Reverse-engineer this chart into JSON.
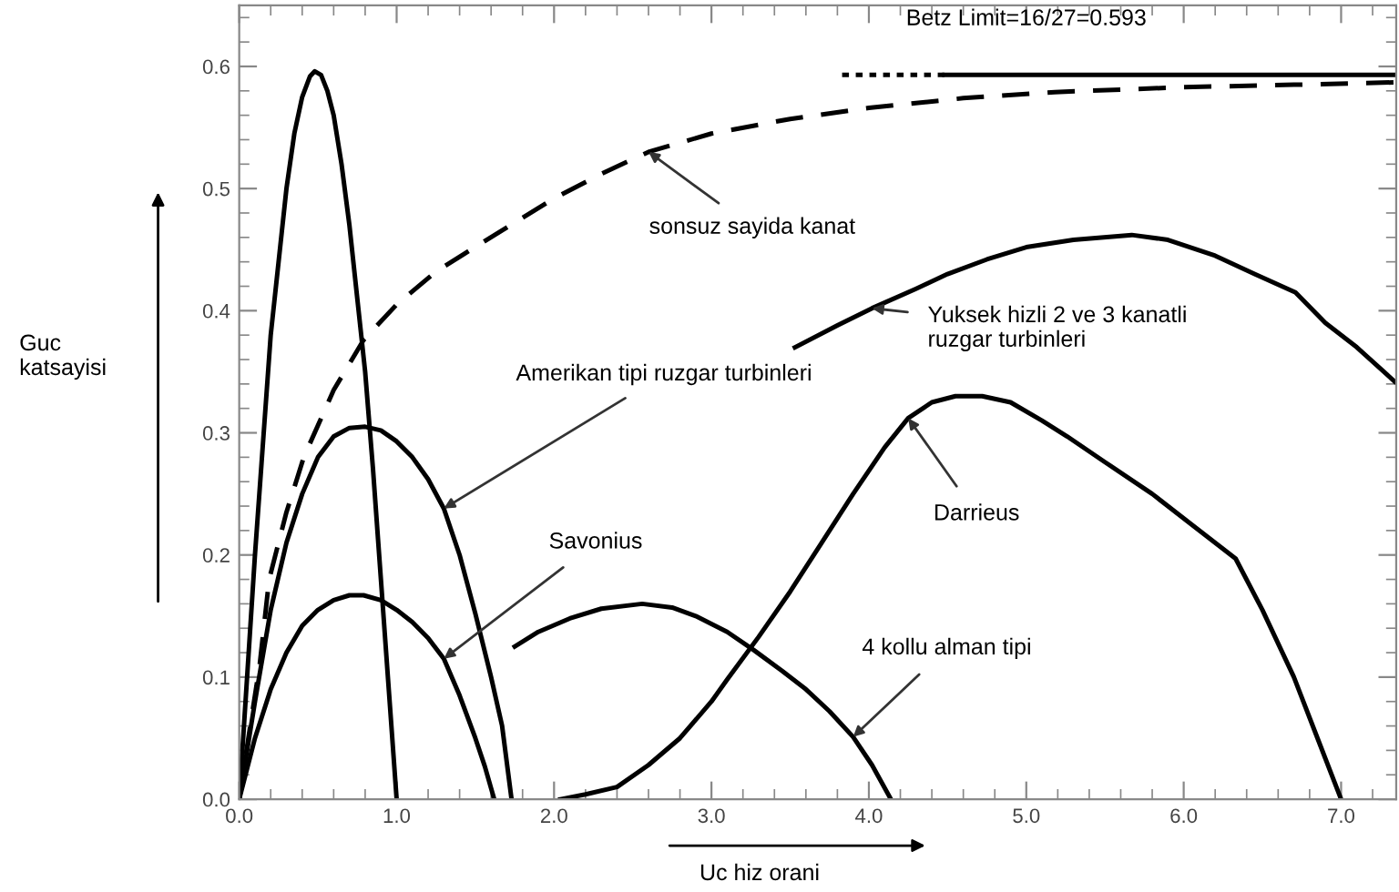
{
  "chart_data": {
    "type": "line",
    "xlabel": "Uc hiz orani",
    "ylabel": "Guc\nkatsayisi",
    "xlim": [
      0,
      7.35
    ],
    "ylim": [
      0,
      0.65
    ],
    "xticks": [
      {
        "value": 0,
        "label": "0.0"
      },
      {
        "value": 1,
        "label": "1.0"
      },
      {
        "value": 2,
        "label": "2.0"
      },
      {
        "value": 3,
        "label": "3.0"
      },
      {
        "value": 4,
        "label": "4.0"
      },
      {
        "value": 5,
        "label": "5.0"
      },
      {
        "value": 6,
        "label": "6.0"
      },
      {
        "value": 7,
        "label": "7.0"
      }
    ],
    "yticks": [
      {
        "value": 0,
        "label": "0.0"
      },
      0.1,
      0.2,
      0.3,
      0.4,
      0.5,
      0.6
    ],
    "grid": false,
    "legend": false,
    "series": [
      {
        "color": "#000000",
        "line_style": "solid",
        "x": [
          0,
          0.05,
          0.1,
          0.15,
          0.2,
          0.25,
          0.3,
          0.35,
          0.4,
          0.45,
          0.48,
          0.52,
          0.56,
          0.6,
          0.65,
          0.7,
          0.75,
          0.8,
          0.85,
          0.9,
          0.95,
          1.0
        ],
        "values": [
          0,
          0.1,
          0.2,
          0.29,
          0.38,
          0.44,
          0.5,
          0.545,
          0.575,
          0.592,
          0.596,
          0.593,
          0.58,
          0.56,
          0.52,
          0.47,
          0.41,
          0.35,
          0.27,
          0.18,
          0.09,
          0
        ]
      },
      {
        "color": "#000000",
        "line_style": "dashed",
        "x": [
          0,
          0.07,
          0.13,
          0.19,
          0.3,
          0.41,
          0.6,
          0.79,
          1.0,
          1.25,
          1.56,
          2.0,
          2.3,
          2.6,
          3.0,
          3.5,
          4.0,
          4.6,
          5.18,
          6.0,
          6.7,
          7.35
        ],
        "values": [
          0,
          0.06,
          0.11,
          0.18,
          0.235,
          0.28,
          0.335,
          0.376,
          0.405,
          0.432,
          0.457,
          0.492,
          0.512,
          0.53,
          0.545,
          0.557,
          0.566,
          0.574,
          0.579,
          0.583,
          0.585,
          0.587
        ]
      },
      {
        "color": "#000000",
        "line_style": "dotted",
        "x": [
          3.83,
          4.48
        ],
        "values": [
          0.593,
          0.593
        ]
      },
      {
        "color": "#000000",
        "line_style": "solid",
        "x": [
          4.48,
          7.35
        ],
        "values": [
          0.593,
          0.593
        ]
      },
      {
        "color": "#000000",
        "line_style": "solid",
        "x": [
          0,
          0.1,
          0.2,
          0.3,
          0.4,
          0.5,
          0.6,
          0.7,
          0.8,
          0.9,
          1.0,
          1.1,
          1.2,
          1.3,
          1.4,
          1.5,
          1.6,
          1.67,
          1.73
        ],
        "values": [
          0,
          0.08,
          0.155,
          0.21,
          0.25,
          0.28,
          0.297,
          0.304,
          0.305,
          0.302,
          0.293,
          0.28,
          0.262,
          0.238,
          0.2,
          0.152,
          0.1,
          0.06,
          0
        ]
      },
      {
        "color": "#000000",
        "line_style": "solid",
        "x": [
          0,
          0.1,
          0.2,
          0.3,
          0.4,
          0.5,
          0.6,
          0.7,
          0.79,
          0.9,
          1.0,
          1.1,
          1.2,
          1.3,
          1.4,
          1.5,
          1.56,
          1.62
        ],
        "values": [
          0,
          0.05,
          0.09,
          0.12,
          0.142,
          0.155,
          0.163,
          0.167,
          0.167,
          0.163,
          0.155,
          0.145,
          0.132,
          0.115,
          0.085,
          0.05,
          0.027,
          0
        ]
      },
      {
        "color": "#000000",
        "line_style": "solid",
        "x": [
          1.75,
          1.9,
          2.1,
          2.3,
          2.56,
          2.75,
          2.9,
          3.1,
          3.27,
          3.45,
          3.6,
          3.75,
          3.9,
          4.02,
          4.14
        ],
        "values": [
          0.125,
          0.137,
          0.148,
          0.156,
          0.16,
          0.157,
          0.15,
          0.137,
          0.122,
          0.105,
          0.09,
          0.072,
          0.051,
          0.028,
          0
        ]
      },
      {
        "color": "#000000",
        "line_style": "solid",
        "x": [
          2.04,
          2.2,
          2.4,
          2.6,
          2.8,
          3.0,
          3.1,
          3.3,
          3.5,
          3.7,
          3.9,
          4.1,
          4.25,
          4.4,
          4.55,
          4.72,
          4.9,
          5.1,
          5.26,
          5.5,
          5.8,
          6.05,
          6.33,
          6.5,
          6.7,
          6.85,
          7.0
        ],
        "values": [
          0,
          0.004,
          0.01,
          0.028,
          0.05,
          0.08,
          0.098,
          0.133,
          0.17,
          0.21,
          0.25,
          0.288,
          0.312,
          0.325,
          0.33,
          0.33,
          0.325,
          0.31,
          0.297,
          0.276,
          0.25,
          0.225,
          0.197,
          0.155,
          0.1,
          0.05,
          0
        ]
      },
      {
        "color": "#000000",
        "line_style": "solid",
        "x": [
          3.53,
          3.8,
          4.02,
          4.3,
          4.5,
          4.75,
          5.0,
          5.3,
          5.67,
          5.9,
          6.2,
          6.45,
          6.71,
          6.9,
          7.1,
          7.34
        ],
        "values": [
          0.37,
          0.388,
          0.402,
          0.418,
          0.43,
          0.442,
          0.452,
          0.458,
          0.462,
          0.458,
          0.445,
          0.43,
          0.415,
          0.39,
          0.37,
          0.342
        ]
      }
    ],
    "annotations": [
      {
        "text": "Betz Limit=16/27=0.593",
        "x": 5.0,
        "y": 0.593
      },
      {
        "text": "sonsuz sayida kanat",
        "x": 2.6,
        "y": 0.53
      },
      {
        "text": "Amerikan tipi ruzgar turbinleri",
        "x": 1.3,
        "y": 0.238
      },
      {
        "text": "Savonius",
        "x": 1.3,
        "y": 0.115
      },
      {
        "text": "Yuksek hizli 2 ve 3 kanatli\nruzgar turbinleri",
        "x": 4.02,
        "y": 0.402
      },
      {
        "text": "Darrieus",
        "x": 4.25,
        "y": 0.312
      },
      {
        "text": "4 kollu alman tipi",
        "x": 3.9,
        "y": 0.051
      }
    ]
  }
}
